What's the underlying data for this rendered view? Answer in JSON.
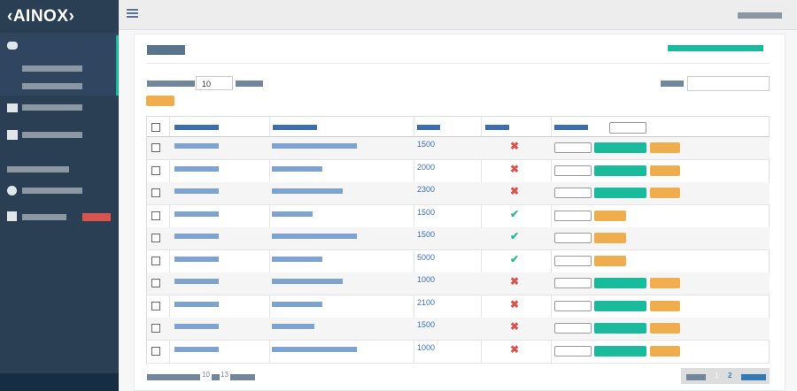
{
  "logo": "‹AINOX›",
  "page_size": "10",
  "rows": [
    {
      "amount": 1500,
      "active": false
    },
    {
      "amount": 2000,
      "active": false
    },
    {
      "amount": 2300,
      "active": false
    },
    {
      "amount": 1500,
      "active": true
    },
    {
      "amount": 1500,
      "active": true
    },
    {
      "amount": 5000,
      "active": true
    },
    {
      "amount": 1000,
      "active": false
    },
    {
      "amount": 2100,
      "active": false
    },
    {
      "amount": 1500,
      "active": false
    },
    {
      "amount": 1000,
      "active": false
    }
  ],
  "footer": {
    "shown": "10",
    "total": "13"
  },
  "pagination": [
    "1",
    "2"
  ]
}
